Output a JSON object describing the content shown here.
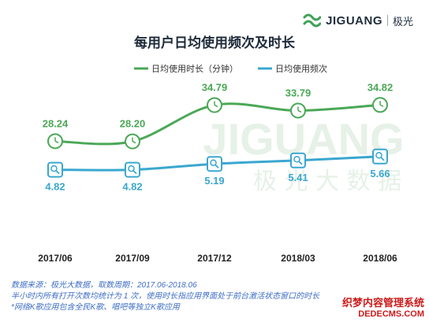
{
  "logo": {
    "brand": "JIGUANG",
    "brand_cn": "极光"
  },
  "watermark": {
    "en": "JIGUANG",
    "cn": "极 光 大 数 据"
  },
  "title": "每用户日均使用频次及时长",
  "chart_data": {
    "type": "line",
    "title": "每用户日均使用频次及时长",
    "categories": [
      "2017/06",
      "2017/09",
      "2017/12",
      "2018/03",
      "2018/06"
    ],
    "series": [
      {
        "name": "日均使用时长（分钟）",
        "values": [
          28.24,
          28.2,
          34.79,
          33.79,
          34.82
        ],
        "color": "#4aa856",
        "icon": "clock-icon"
      },
      {
        "name": "日均使用频次",
        "values": [
          4.82,
          4.82,
          5.19,
          5.41,
          5.66
        ],
        "color": "#3aa7cf",
        "icon": "magnifier-icon"
      }
    ],
    "value_labels": [
      [
        "28.24",
        "28.20",
        "34.79",
        "33.79",
        "34.82"
      ],
      [
        "4.82",
        "4.82",
        "5.19",
        "5.41",
        "5.66"
      ]
    ],
    "legend_position": "top-center",
    "grid": false
  },
  "footer": {
    "line1": "数据来源：极光大数据，取数周期：2017.06-2018.06",
    "line2": "半小时内所有打开次数均统计为 1 次，使用时长指应用界面处于前台激活状态窗口的时长",
    "line3": "*网络K歌应用包含全民K歌、唱吧等独立K歌应用"
  },
  "site_stamp": {
    "line1": "织梦内容管理系统",
    "line2": "DEDECMS.COM"
  }
}
